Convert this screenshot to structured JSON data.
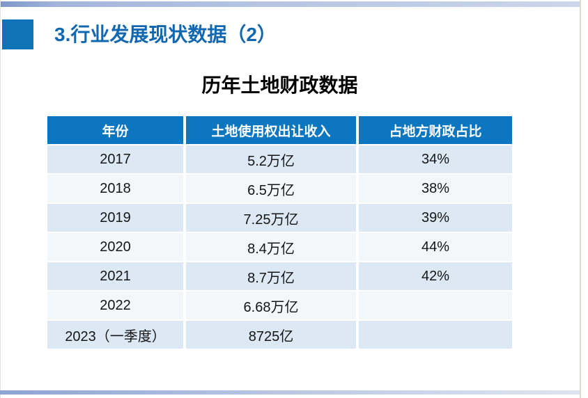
{
  "slide": {
    "title": "3.行业发展现状数据（2）",
    "table_title": "历年土地财政数据"
  },
  "table": {
    "headers": [
      "年份",
      "土地使用权出让收入",
      "占地方财政占比"
    ],
    "rows": [
      [
        "2017",
        "5.2万亿",
        "34%"
      ],
      [
        "2018",
        "6.5万亿",
        "38%"
      ],
      [
        "2019",
        "7.25万亿",
        "39%"
      ],
      [
        "2020",
        "8.4万亿",
        "44%"
      ],
      [
        "2021",
        "8.7万亿",
        "42%"
      ],
      [
        "2022",
        "6.68万亿",
        ""
      ],
      [
        "2023（一季度）",
        "8725亿",
        ""
      ]
    ]
  },
  "colors": {
    "header_blue": "#0d76c0",
    "accent_square_blue": "#1173b7",
    "title_text_blue": "#1268b0",
    "row_light_blue": "#dce9f5",
    "row_off_white": "#f3f7fa",
    "decorative_bar_start": "#8da4d1",
    "decorative_bar_end": "#dee4f1"
  }
}
